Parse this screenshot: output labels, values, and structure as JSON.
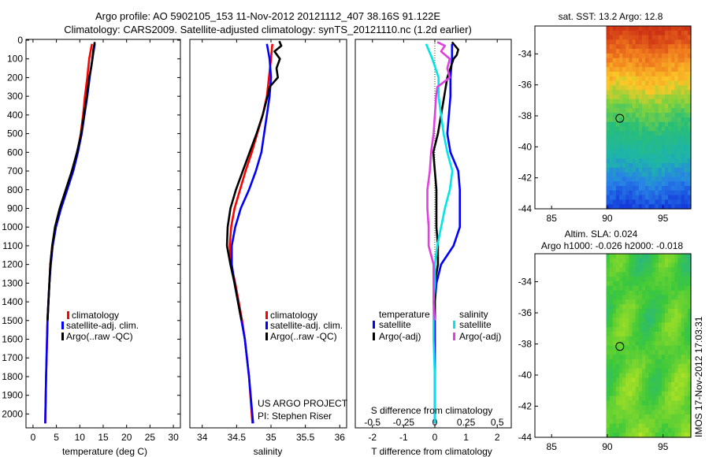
{
  "header": {
    "line1": "Argo profile: AO 5902105_153 11-Nov-2012 20121112_407 38.16S 91.122E",
    "line2": "Climatology: CARS2009. Satellite-adjusted climatology: synTS_20121110.nc (1.2d earlier)"
  },
  "colors": {
    "climatology": "#ff0000",
    "satellite": "#0000ff",
    "argo": "#000000",
    "sal_satellite": "#00e5e5",
    "sal_argo": "#e040e0"
  },
  "chart_data": [
    {
      "id": "temperature",
      "type": "line",
      "xlabel": "temperature (deg C)",
      "ylabel": "",
      "xlim": [
        -1.5,
        31.5
      ],
      "ylim": [
        2070,
        0
      ],
      "xticks": [
        "0",
        "5",
        "10",
        "15",
        "20",
        "25",
        "30"
      ],
      "xtick_values": [
        0,
        5,
        10,
        15,
        20,
        25,
        30
      ],
      "yticks": [
        "0",
        "100",
        "200",
        "300",
        "400",
        "500",
        "600",
        "700",
        "800",
        "900",
        "1000",
        "1100",
        "1200",
        "1300",
        "1400",
        "1500",
        "1600",
        "1700",
        "1800",
        "1900",
        "2000"
      ],
      "ytick_values": [
        0,
        100,
        200,
        300,
        400,
        500,
        600,
        700,
        800,
        900,
        1000,
        1100,
        1200,
        1300,
        1400,
        1500,
        1600,
        1700,
        1800,
        1900,
        2000
      ],
      "legend": [
        "climatology",
        "satellite-adj. clim.",
        "Argo(..raw -QC)"
      ],
      "series": [
        {
          "name": "climatology",
          "depth": [
            20,
            100,
            200,
            300,
            400,
            500,
            600,
            700,
            800,
            900,
            1000,
            1100,
            1200,
            1300,
            1400,
            1500,
            1600,
            1800,
            2050
          ],
          "values": [
            12.6,
            12.0,
            11.6,
            11.1,
            10.7,
            10.2,
            9.5,
            8.5,
            7.2,
            5.9,
            4.8,
            4.1,
            3.7,
            3.5,
            3.3,
            3.1,
            3.0,
            2.8,
            2.6
          ]
        },
        {
          "name": "satellite-adj. clim.",
          "depth": [
            20,
            100,
            200,
            300,
            400,
            500,
            600,
            700,
            800,
            900,
            1000,
            1100,
            1200,
            1300,
            1400,
            1500,
            1600,
            1800,
            2050
          ],
          "values": [
            13.2,
            12.7,
            12.1,
            11.6,
            11.0,
            10.4,
            9.6,
            8.6,
            7.3,
            6.0,
            4.9,
            4.2,
            3.8,
            3.5,
            3.3,
            3.1,
            3.0,
            2.8,
            2.6
          ]
        },
        {
          "name": "Argo(..raw -QC)",
          "depth": [
            10,
            50,
            100,
            150,
            200,
            300,
            400,
            500,
            600,
            700,
            800,
            900,
            1000,
            1100,
            1200,
            1300,
            1400,
            1500
          ],
          "values": [
            13.2,
            12.9,
            12.7,
            12.4,
            12.0,
            11.5,
            10.9,
            10.3,
            9.4,
            8.3,
            7.0,
            5.7,
            4.7,
            4.1,
            3.7,
            3.5,
            3.3,
            3.1
          ]
        }
      ]
    },
    {
      "id": "salinity",
      "type": "line",
      "xlabel": "salinity",
      "xlim": [
        33.82,
        36.1
      ],
      "ylim": [
        2070,
        0
      ],
      "xticks": [
        "34",
        "34.5",
        "35",
        "35.5",
        "36"
      ],
      "xtick_values": [
        34,
        34.5,
        35,
        35.5,
        36
      ],
      "legend": [
        "climatology",
        "satellite-adj. clim.",
        "Argo(..raw -QC)"
      ],
      "series": [
        {
          "name": "climatology",
          "depth": [
            20,
            100,
            200,
            300,
            400,
            500,
            600,
            700,
            800,
            900,
            1000,
            1100,
            1200,
            1300,
            1400,
            1500,
            1600,
            1800,
            2050
          ],
          "values": [
            35.02,
            35.0,
            34.97,
            34.94,
            34.88,
            34.8,
            34.72,
            34.63,
            34.55,
            34.47,
            34.42,
            34.4,
            34.42,
            34.48,
            34.53,
            34.58,
            34.62,
            34.68,
            34.73
          ]
        },
        {
          "name": "satellite-adj. clim.",
          "depth": [
            20,
            100,
            200,
            300,
            400,
            500,
            600,
            700,
            800,
            900,
            1000,
            1100,
            1200,
            1300,
            1400,
            1500,
            1600,
            1800,
            2050
          ],
          "values": [
            34.94,
            34.98,
            35.0,
            34.98,
            34.94,
            34.9,
            34.86,
            34.78,
            34.68,
            34.56,
            34.48,
            34.43,
            34.43,
            34.47,
            34.52,
            34.57,
            34.62,
            34.68,
            34.74
          ]
        },
        {
          "name": "Argo(..raw -QC)",
          "depth": [
            5,
            30,
            60,
            100,
            150,
            200,
            250,
            300,
            400,
            500,
            600,
            700,
            800,
            900,
            1000,
            1100,
            1200,
            1300,
            1400,
            1500
          ],
          "values": [
            35.12,
            35.15,
            35.05,
            35.13,
            35.08,
            35.1,
            34.98,
            34.95,
            34.88,
            34.79,
            34.69,
            34.59,
            34.49,
            34.41,
            34.37,
            34.36,
            34.41,
            34.47,
            34.52,
            34.57
          ]
        }
      ]
    },
    {
      "id": "difference",
      "type": "line",
      "xlabel": "T difference from climatology",
      "xlabel_top": "S difference from climatology",
      "xlim": [
        -2.55,
        2.45
      ],
      "ylim": [
        2070,
        0
      ],
      "xticks": [
        "-2",
        "-1",
        "0",
        "1",
        "2"
      ],
      "xtick_values": [
        -2,
        -1,
        0,
        1,
        2
      ],
      "sticks": [
        "-0.5",
        "-0.25",
        "0",
        "0.25",
        "0.5"
      ],
      "stick_values": [
        -0.5,
        -0.25,
        0,
        0.25,
        0.5
      ],
      "legend_temperature_title": "temperature",
      "legend_salinity_title": "salinity",
      "legend": [
        "satellite",
        "Argo(-adj)",
        "satellite",
        "Argo(-adj)"
      ],
      "series": [
        {
          "name": "temperature satellite",
          "depth": [
            20,
            100,
            200,
            300,
            400,
            500,
            600,
            700,
            800,
            900,
            1000,
            1100,
            1200,
            1300,
            1400,
            1500,
            1600,
            1800,
            2050
          ],
          "values": [
            0.55,
            0.55,
            0.5,
            0.5,
            0.45,
            0.4,
            0.5,
            0.75,
            0.8,
            0.8,
            0.8,
            0.6,
            0.2,
            0.05,
            0.0,
            0.0,
            0.0,
            0.0,
            0.0
          ]
        },
        {
          "name": "temperature Argo(-adj)",
          "depth": [
            10,
            50,
            80,
            100,
            150,
            200,
            300,
            400,
            500,
            600,
            700,
            800,
            900,
            1000,
            1100,
            1200,
            1300,
            1400,
            1500
          ],
          "values": [
            0.55,
            0.75,
            0.7,
            0.6,
            0.5,
            0.4,
            0.3,
            0.2,
            0.1,
            -0.05,
            0.0,
            0.05,
            0.05,
            0.05,
            0.1,
            0.1,
            0.0,
            0.0,
            0.0
          ]
        },
        {
          "name": "salinity satellite",
          "depth": [
            20,
            100,
            200,
            300,
            400,
            500,
            600,
            700,
            800,
            900,
            1000,
            1100,
            1200,
            1300,
            1400,
            1500,
            1600,
            1800,
            2050
          ],
          "values": [
            -0.07,
            -0.02,
            0.03,
            0.03,
            0.05,
            0.07,
            0.1,
            0.14,
            0.12,
            0.08,
            0.05,
            0.02,
            0.0,
            0.0,
            -0.01,
            -0.01,
            -0.01,
            0.0,
            0.0
          ]
        },
        {
          "name": "salinity Argo(-adj)",
          "depth": [
            10,
            30,
            60,
            100,
            150,
            200,
            250,
            300,
            400,
            500,
            600,
            700,
            800,
            900,
            1000,
            1100,
            1200,
            1300,
            1400,
            1500
          ],
          "values": [
            0.02,
            0.08,
            0.05,
            0.12,
            0.1,
            0.12,
            0.02,
            0.01,
            0.0,
            -0.01,
            -0.03,
            -0.04,
            -0.06,
            -0.06,
            -0.05,
            -0.05,
            -0.01,
            -0.01,
            -0.01,
            0.0
          ]
        }
      ]
    },
    {
      "id": "sst_map",
      "type": "heatmap",
      "title": "sat. SST: 13.2 Argo: 12.8",
      "xlim": [
        83.5,
        97.5
      ],
      "ylim": [
        -44,
        -32.2
      ],
      "xticks": [
        "85",
        "90",
        "95"
      ],
      "xtick_values": [
        85,
        90,
        95
      ],
      "yticks": [
        "-34",
        "-36",
        "-38",
        "-40",
        "-42",
        "-44"
      ],
      "ytick_values": [
        -34,
        -36,
        -38,
        -40,
        -42,
        -44
      ],
      "data_lon_range": [
        89.9,
        97.5
      ],
      "marker": {
        "lon": 91.122,
        "lat": -38.16
      }
    },
    {
      "id": "sla_map",
      "type": "heatmap",
      "title": "Altim. SLA: 0.024",
      "subtitle": "Argo h1000: -0.026 h2000: -0.018",
      "xlim": [
        83.5,
        97.5
      ],
      "ylim": [
        -44,
        -32.2
      ],
      "xticks": [
        "85",
        "90",
        "95"
      ],
      "xtick_values": [
        85,
        90,
        95
      ],
      "yticks": [
        "-34",
        "-36",
        "-38",
        "-40",
        "-42",
        "-44"
      ],
      "ytick_values": [
        -34,
        -36,
        -38,
        -40,
        -42,
        -44
      ],
      "data_lon_range": [
        89.9,
        97.5
      ],
      "marker": {
        "lon": 91.122,
        "lat": -38.16
      }
    }
  ],
  "panels": {
    "salinity_note_line1": "US ARGO PROJECT",
    "salinity_note_line2": "PI: Stephen Riser"
  },
  "footer": {
    "stamp": "IMOS 17-Nov-2012 17:03:31"
  }
}
